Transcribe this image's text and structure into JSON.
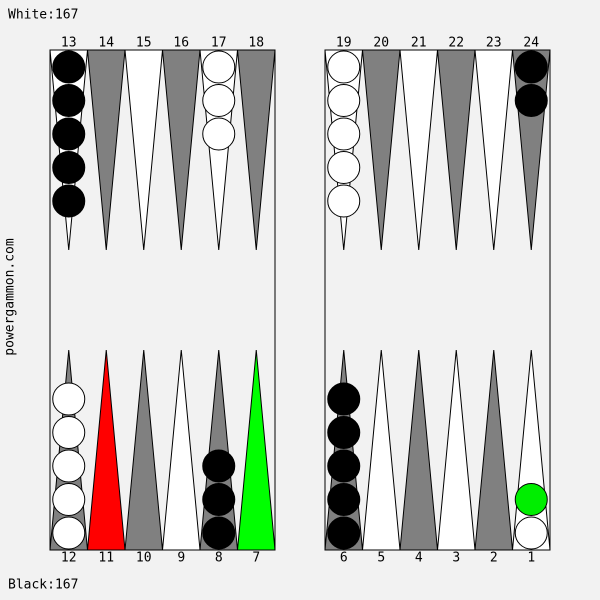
{
  "header": {
    "text": "White:167"
  },
  "footer": {
    "text": "Black:167"
  },
  "side_text": "powergammon.com",
  "top_points": [
    {
      "label": 13,
      "fill": "#ffffff",
      "checkers": [
        "#000000",
        "#000000",
        "#000000",
        "#000000",
        "#000000"
      ]
    },
    {
      "label": 14,
      "fill": "#808080",
      "checkers": []
    },
    {
      "label": 15,
      "fill": "#ffffff",
      "checkers": []
    },
    {
      "label": 16,
      "fill": "#808080",
      "checkers": []
    },
    {
      "label": 17,
      "fill": "#ffffff",
      "checkers": [
        "#ffffff",
        "#ffffff",
        "#ffffff"
      ]
    },
    {
      "label": 18,
      "fill": "#808080",
      "checkers": []
    },
    {
      "label": 19,
      "fill": "#ffffff",
      "checkers": [
        "#ffffff",
        "#ffffff",
        "#ffffff",
        "#ffffff",
        "#ffffff"
      ]
    },
    {
      "label": 20,
      "fill": "#808080",
      "checkers": []
    },
    {
      "label": 21,
      "fill": "#ffffff",
      "checkers": []
    },
    {
      "label": 22,
      "fill": "#808080",
      "checkers": []
    },
    {
      "label": 23,
      "fill": "#ffffff",
      "checkers": []
    },
    {
      "label": 24,
      "fill": "#808080",
      "checkers": [
        "#000000",
        "#000000"
      ]
    }
  ],
  "bottom_points": [
    {
      "label": 12,
      "fill": "#808080",
      "checkers": [
        "#ffffff",
        "#ffffff",
        "#ffffff",
        "#ffffff",
        "#ffffff"
      ]
    },
    {
      "label": 11,
      "fill": "#ff0000",
      "checkers": []
    },
    {
      "label": 10,
      "fill": "#808080",
      "checkers": []
    },
    {
      "label": 9,
      "fill": "#ffffff",
      "checkers": []
    },
    {
      "label": 8,
      "fill": "#808080",
      "checkers": [
        "#000000",
        "#000000",
        "#000000"
      ]
    },
    {
      "label": 7,
      "fill": "#00ff00",
      "checkers": []
    },
    {
      "label": 6,
      "fill": "#808080",
      "checkers": [
        "#000000",
        "#000000",
        "#000000",
        "#000000",
        "#000000"
      ]
    },
    {
      "label": 5,
      "fill": "#ffffff",
      "checkers": []
    },
    {
      "label": 4,
      "fill": "#808080",
      "checkers": []
    },
    {
      "label": 3,
      "fill": "#ffffff",
      "checkers": []
    },
    {
      "label": 2,
      "fill": "#808080",
      "checkers": []
    },
    {
      "label": 1,
      "fill": "#ffffff",
      "checkers": [
        "#ffffff",
        "#00ee00"
      ]
    }
  ]
}
